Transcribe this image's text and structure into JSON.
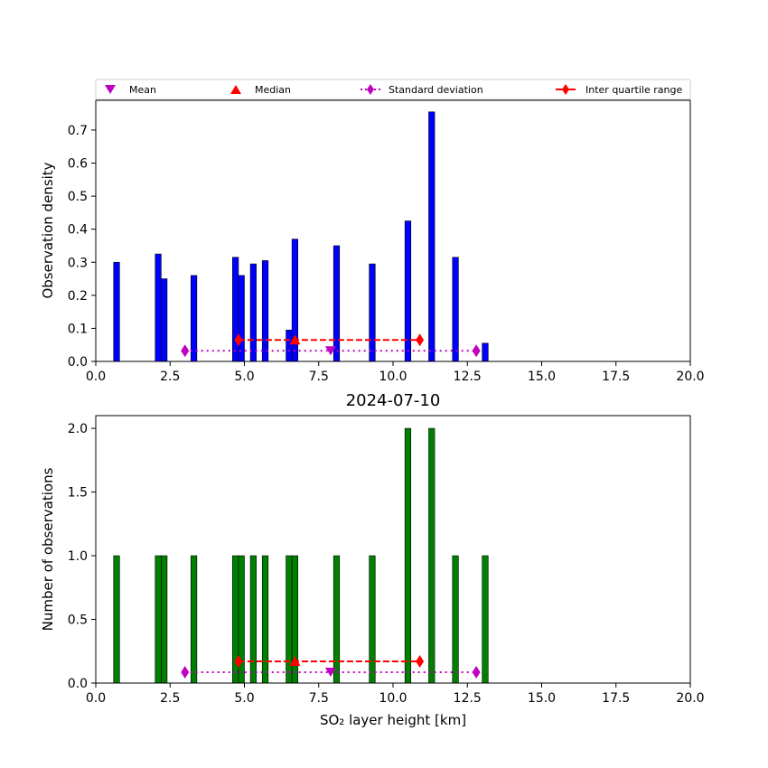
{
  "chart_data": [
    {
      "type": "bar",
      "x": [
        0.7,
        2.1,
        2.3,
        3.3,
        4.7,
        4.9,
        5.3,
        5.7,
        6.5,
        6.7,
        8.1,
        9.3,
        10.5,
        11.3,
        12.1,
        13.1
      ],
      "values": [
        0.3,
        0.325,
        0.25,
        0.26,
        0.315,
        0.26,
        0.295,
        0.305,
        0.095,
        0.37,
        0.35,
        0.295,
        0.425,
        0.755,
        0.315,
        0.055
      ],
      "bar_color": "#0000ff",
      "xlabel": "",
      "ylabel": "Observation density",
      "xlim": [
        0,
        20
      ],
      "ylim": [
        0,
        0.79
      ],
      "xticks": [
        "0.0",
        "2.5",
        "5.0",
        "7.5",
        "10.0",
        "12.5",
        "15.0",
        "17.5",
        "20.0"
      ],
      "yticks": [
        "0.0",
        "0.1",
        "0.2",
        "0.3",
        "0.4",
        "0.5",
        "0.6",
        "0.7"
      ],
      "stats": {
        "mean": {
          "x": 7.9,
          "y": 0.032
        },
        "median": {
          "x": 6.7,
          "y": 0.065
        },
        "std": {
          "x": [
            3.0,
            12.8
          ],
          "y": 0.032
        },
        "iqr": {
          "x": [
            4.8,
            10.9
          ],
          "y": 0.065
        }
      },
      "legend": {
        "placement": "top",
        "entries": [
          {
            "label": "Mean",
            "marker": "triangle-down",
            "color": "#bf00bf"
          },
          {
            "label": "Median",
            "marker": "triangle-up",
            "color": "#ff0000"
          },
          {
            "label": "Standard deviation",
            "marker": "diamond-dotted",
            "color": "#bf00bf"
          },
          {
            "label": "Inter quartile range",
            "marker": "diamond-dashed",
            "color": "#ff0000"
          }
        ]
      }
    },
    {
      "type": "bar",
      "title": "2024-07-10",
      "x": [
        0.7,
        2.1,
        2.3,
        3.3,
        4.7,
        4.9,
        5.3,
        5.7,
        6.5,
        6.7,
        8.1,
        9.3,
        10.5,
        11.3,
        12.1,
        13.1
      ],
      "values": [
        1,
        1,
        1,
        1,
        1,
        1,
        1,
        1,
        1,
        1,
        1,
        1,
        2,
        2,
        1,
        1
      ],
      "bar_color": "#008000",
      "xlabel": "SO₂ layer height [km]",
      "ylabel": "Number of observations",
      "xlim": [
        0,
        20
      ],
      "ylim": [
        0,
        2.1
      ],
      "xticks": [
        "0.0",
        "2.5",
        "5.0",
        "7.5",
        "10.0",
        "12.5",
        "15.0",
        "17.5",
        "20.0"
      ],
      "yticks": [
        "0.0",
        "0.5",
        "1.0",
        "1.5",
        "2.0"
      ],
      "stats": {
        "mean": {
          "x": 7.9,
          "y": 0.085
        },
        "median": {
          "x": 6.7,
          "y": 0.17
        },
        "std": {
          "x": [
            3.0,
            12.8
          ],
          "y": 0.085
        },
        "iqr": {
          "x": [
            4.8,
            10.9
          ],
          "y": 0.17
        }
      }
    }
  ]
}
